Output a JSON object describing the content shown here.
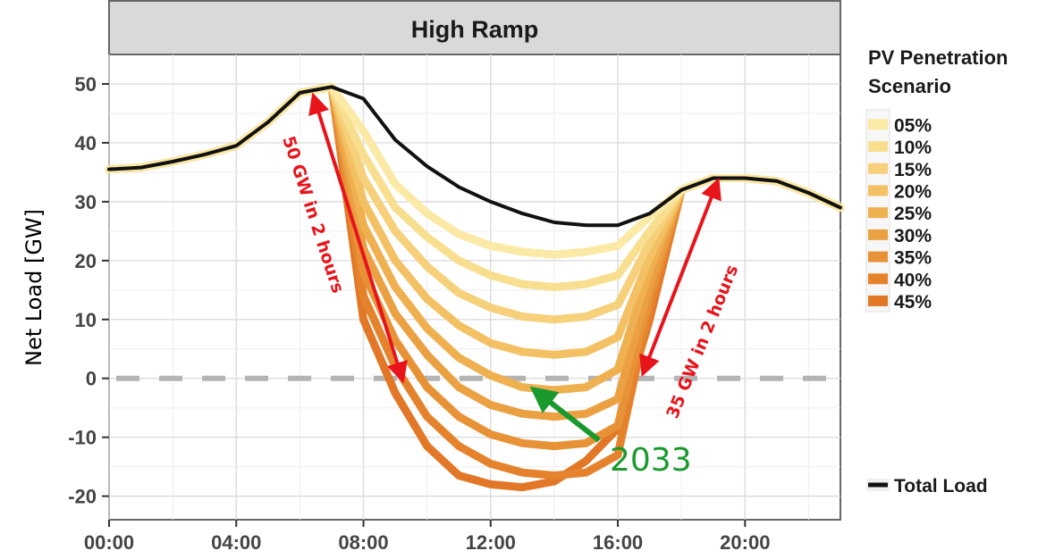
{
  "chart_data": {
    "type": "line",
    "facet_title": "High Ramp",
    "ylabel": "Net Load [GW]",
    "xlabel": "",
    "x_ticks": [
      "00:00",
      "04:00",
      "08:00",
      "12:00",
      "16:00",
      "20:00"
    ],
    "y_ticks": [
      "50",
      "40",
      "30",
      "20",
      "10",
      "0",
      "-10",
      "-20"
    ],
    "x_hours": [
      0,
      1,
      2,
      3,
      4,
      5,
      6,
      7,
      8,
      9,
      10,
      11,
      12,
      13,
      14,
      15,
      16,
      17,
      18,
      19,
      20,
      21,
      22,
      23
    ],
    "xlim": [
      0,
      23
    ],
    "ylim": [
      -24,
      55
    ],
    "grid": true,
    "legend_title": "PV Penetration Scenario",
    "legend_title_lines": [
      "PV Penetration",
      "Scenario"
    ],
    "legend_position": "right",
    "series": [
      {
        "name": "05%",
        "color": "#fbe9a6",
        "values": [
          35.5,
          35.8,
          36.8,
          38.0,
          39.5,
          43.5,
          48.5,
          49.5,
          42.0,
          33.0,
          28.0,
          24.5,
          22.5,
          21.5,
          21.0,
          21.5,
          22.5,
          27.5,
          32.0,
          34.0,
          34.0,
          33.5,
          31.5,
          29.0
        ]
      },
      {
        "name": "10%",
        "color": "#f8df90",
        "values": [
          35.5,
          35.8,
          36.8,
          38.0,
          39.5,
          43.5,
          48.5,
          49.5,
          38.0,
          29.0,
          24.0,
          20.0,
          17.5,
          16.0,
          15.5,
          16.0,
          17.5,
          25.0,
          32.0,
          34.0,
          34.0,
          33.5,
          31.5,
          29.0
        ]
      },
      {
        "name": "15%",
        "color": "#f6d07a",
        "values": [
          35.5,
          35.8,
          36.8,
          38.0,
          39.5,
          43.5,
          48.5,
          49.5,
          34.0,
          25.0,
          19.0,
          14.5,
          12.0,
          10.5,
          10.0,
          10.5,
          12.5,
          23.0,
          32.0,
          34.0,
          34.0,
          33.5,
          31.5,
          29.0
        ]
      },
      {
        "name": "20%",
        "color": "#f3c163",
        "values": [
          35.5,
          35.8,
          36.8,
          38.0,
          39.5,
          43.5,
          48.5,
          49.5,
          30.0,
          20.0,
          13.5,
          9.0,
          6.0,
          4.5,
          4.0,
          4.5,
          7.0,
          20.5,
          32.0,
          34.0,
          34.0,
          33.5,
          31.5,
          29.0
        ]
      },
      {
        "name": "25%",
        "color": "#efb050",
        "values": [
          35.5,
          35.8,
          36.8,
          38.0,
          39.5,
          43.5,
          48.5,
          49.5,
          26.0,
          15.5,
          8.5,
          3.5,
          0.5,
          -1.5,
          -2.0,
          -1.5,
          1.5,
          18.5,
          32.0,
          34.0,
          34.0,
          33.5,
          31.5,
          29.0
        ]
      },
      {
        "name": "30%",
        "color": "#eba042",
        "values": [
          35.5,
          35.8,
          36.8,
          38.0,
          39.5,
          43.5,
          48.5,
          49.5,
          22.0,
          11.0,
          4.0,
          -1.5,
          -4.5,
          -6.0,
          -6.5,
          -6.0,
          -3.5,
          16.0,
          32.0,
          34.0,
          34.0,
          33.5,
          31.5,
          29.0
        ]
      },
      {
        "name": "35%",
        "color": "#e89237",
        "values": [
          35.5,
          35.8,
          36.8,
          38.0,
          39.5,
          43.5,
          48.5,
          49.5,
          18.0,
          6.5,
          -1.5,
          -6.5,
          -9.5,
          -11.0,
          -11.5,
          -11.0,
          -8.0,
          14.0,
          32.0,
          34.0,
          34.0,
          33.5,
          31.5,
          29.0
        ]
      },
      {
        "name": "40%",
        "color": "#e5832d",
        "values": [
          35.5,
          35.8,
          36.8,
          38.0,
          39.5,
          43.5,
          48.5,
          49.5,
          14.0,
          2.0,
          -6.5,
          -11.5,
          -14.5,
          -16.0,
          -16.5,
          -16.0,
          -13.0,
          12.0,
          32.0,
          34.0,
          34.0,
          33.5,
          31.5,
          29.0
        ]
      },
      {
        "name": "45%",
        "color": "#e27727",
        "values": [
          35.5,
          35.8,
          36.8,
          38.0,
          39.5,
          43.5,
          48.5,
          49.5,
          10.0,
          -2.5,
          -11.5,
          -16.5,
          -18.0,
          -18.5,
          -17.5,
          -14.0,
          -8.5,
          10.0,
          32.0,
          34.0,
          34.0,
          33.5,
          31.5,
          29.0
        ]
      },
      {
        "name": "Total Load",
        "color": "#111111",
        "values": [
          35.5,
          35.8,
          36.8,
          38.0,
          39.5,
          43.5,
          48.5,
          49.5,
          47.5,
          40.5,
          36.0,
          32.5,
          30.0,
          28.0,
          26.5,
          26.0,
          26.0,
          28.0,
          32.0,
          34.0,
          34.0,
          33.5,
          31.5,
          29.0
        ]
      }
    ],
    "annotations": {
      "ramp_down_label": "50 GW in 2 hours",
      "ramp_up_label": "35 GW in 2 hours",
      "year_label": "2033"
    },
    "colors": {
      "ramp_arrow": "#e8141b",
      "year_arrow": "#1a9a2e",
      "zero_line": "#b4b4b4",
      "facet_strip": "#d9d9d9"
    }
  }
}
